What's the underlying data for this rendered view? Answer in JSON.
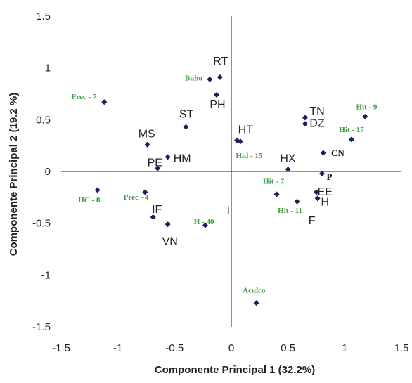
{
  "chart_data": {
    "type": "scatter",
    "xlabel": "Componente Principal 1 (32.2%)",
    "ylabel": "Componente Principal 2 (19.2 %)",
    "xlim": [
      -1.5,
      1.5
    ],
    "ylim": [
      -1.5,
      1.5
    ],
    "xticks": [
      "-1.5",
      "-1",
      "-0.5",
      "0",
      "0.5",
      "1",
      "1.5"
    ],
    "yticks": [
      "1.5",
      "1",
      "0.5",
      "0",
      "-0.5",
      "-1",
      "-1.5"
    ],
    "point_color": "#1a1f5c",
    "observation_label_color": "#3f9e3f",
    "points": [
      {
        "x": -0.19,
        "y": 0.89
      },
      {
        "x": -0.1,
        "y": 0.91
      },
      {
        "x": -0.13,
        "y": 0.74
      },
      {
        "x": -1.12,
        "y": 0.67
      },
      {
        "x": -0.4,
        "y": 0.43
      },
      {
        "x": -0.74,
        "y": 0.26
      },
      {
        "x": -0.56,
        "y": 0.14
      },
      {
        "x": -0.65,
        "y": 0.03
      },
      {
        "x": 0.05,
        "y": 0.3
      },
      {
        "x": 0.08,
        "y": 0.29
      },
      {
        "x": 0.65,
        "y": 0.52
      },
      {
        "x": 0.65,
        "y": 0.46
      },
      {
        "x": 1.18,
        "y": 0.53
      },
      {
        "x": 1.06,
        "y": 0.31
      },
      {
        "x": 0.81,
        "y": 0.18
      },
      {
        "x": 0.5,
        "y": 0.02
      },
      {
        "x": 0.8,
        "y": -0.02
      },
      {
        "x": 0.4,
        "y": -0.22
      },
      {
        "x": 0.58,
        "y": -0.29
      },
      {
        "x": 0.75,
        "y": -0.2
      },
      {
        "x": 0.76,
        "y": -0.26
      },
      {
        "x": -1.18,
        "y": -0.18
      },
      {
        "x": -0.76,
        "y": -0.2
      },
      {
        "x": -0.69,
        "y": -0.44
      },
      {
        "x": -0.56,
        "y": -0.51
      },
      {
        "x": -0.23,
        "y": -0.52
      },
      {
        "x": 0.22,
        "y": -1.27
      }
    ],
    "labels": [
      {
        "text": "RT",
        "x": -0.16,
        "y": 1.03,
        "style": "var"
      },
      {
        "text": "Buho",
        "x": -0.41,
        "y": 0.88,
        "style": "obs"
      },
      {
        "text": "PH",
        "x": -0.19,
        "y": 0.61,
        "style": "var"
      },
      {
        "text": "Prec - 7",
        "x": -1.41,
        "y": 0.7,
        "style": "obs"
      },
      {
        "text": "ST",
        "x": -0.46,
        "y": 0.52,
        "style": "var"
      },
      {
        "text": "MS",
        "x": -0.82,
        "y": 0.33,
        "style": "var"
      },
      {
        "text": "HM",
        "x": -0.51,
        "y": 0.09,
        "style": "var"
      },
      {
        "text": "PE",
        "x": -0.74,
        "y": 0.05,
        "style": "var"
      },
      {
        "text": "HT",
        "x": 0.06,
        "y": 0.37,
        "style": "var"
      },
      {
        "text": "Hid - 15",
        "x": 0.04,
        "y": 0.13,
        "style": "obs"
      },
      {
        "text": "TN",
        "x": 0.69,
        "y": 0.55,
        "style": "var"
      },
      {
        "text": "DZ",
        "x": 0.69,
        "y": 0.43,
        "style": "var"
      },
      {
        "text": "Hit - 9",
        "x": 1.1,
        "y": 0.6,
        "style": "obs"
      },
      {
        "text": "Hit - 17",
        "x": 0.95,
        "y": 0.38,
        "style": "obs"
      },
      {
        "text": "CN",
        "x": 0.88,
        "y": 0.15,
        "style": "bold"
      },
      {
        "text": "HX",
        "x": 0.43,
        "y": 0.09,
        "style": "var"
      },
      {
        "text": "P",
        "x": 0.84,
        "y": -0.08,
        "style": "bold"
      },
      {
        "text": "Hit - 7",
        "x": 0.28,
        "y": -0.12,
        "style": "obs"
      },
      {
        "text": "Hit - 11",
        "x": 0.41,
        "y": -0.4,
        "style": "obs"
      },
      {
        "text": "EE",
        "x": 0.76,
        "y": -0.23,
        "style": "var"
      },
      {
        "text": "H",
        "x": 0.79,
        "y": -0.33,
        "style": "var"
      },
      {
        "text": "F",
        "x": 0.68,
        "y": -0.51,
        "style": "var"
      },
      {
        "text": "HC - 8",
        "x": -1.35,
        "y": -0.3,
        "style": "obs"
      },
      {
        "text": "Prec - 4",
        "x": -0.95,
        "y": -0.27,
        "style": "obs"
      },
      {
        "text": "IF",
        "x": -0.7,
        "y": -0.4,
        "style": "var"
      },
      {
        "text": "H - 40",
        "x": -0.33,
        "y": -0.51,
        "style": "obs"
      },
      {
        "text": "VN",
        "x": -0.61,
        "y": -0.71,
        "style": "var"
      },
      {
        "text": "I",
        "x": -0.04,
        "y": -0.41,
        "style": "var"
      },
      {
        "text": "Aculco",
        "x": 0.1,
        "y": -1.17,
        "style": "obs"
      }
    ]
  }
}
